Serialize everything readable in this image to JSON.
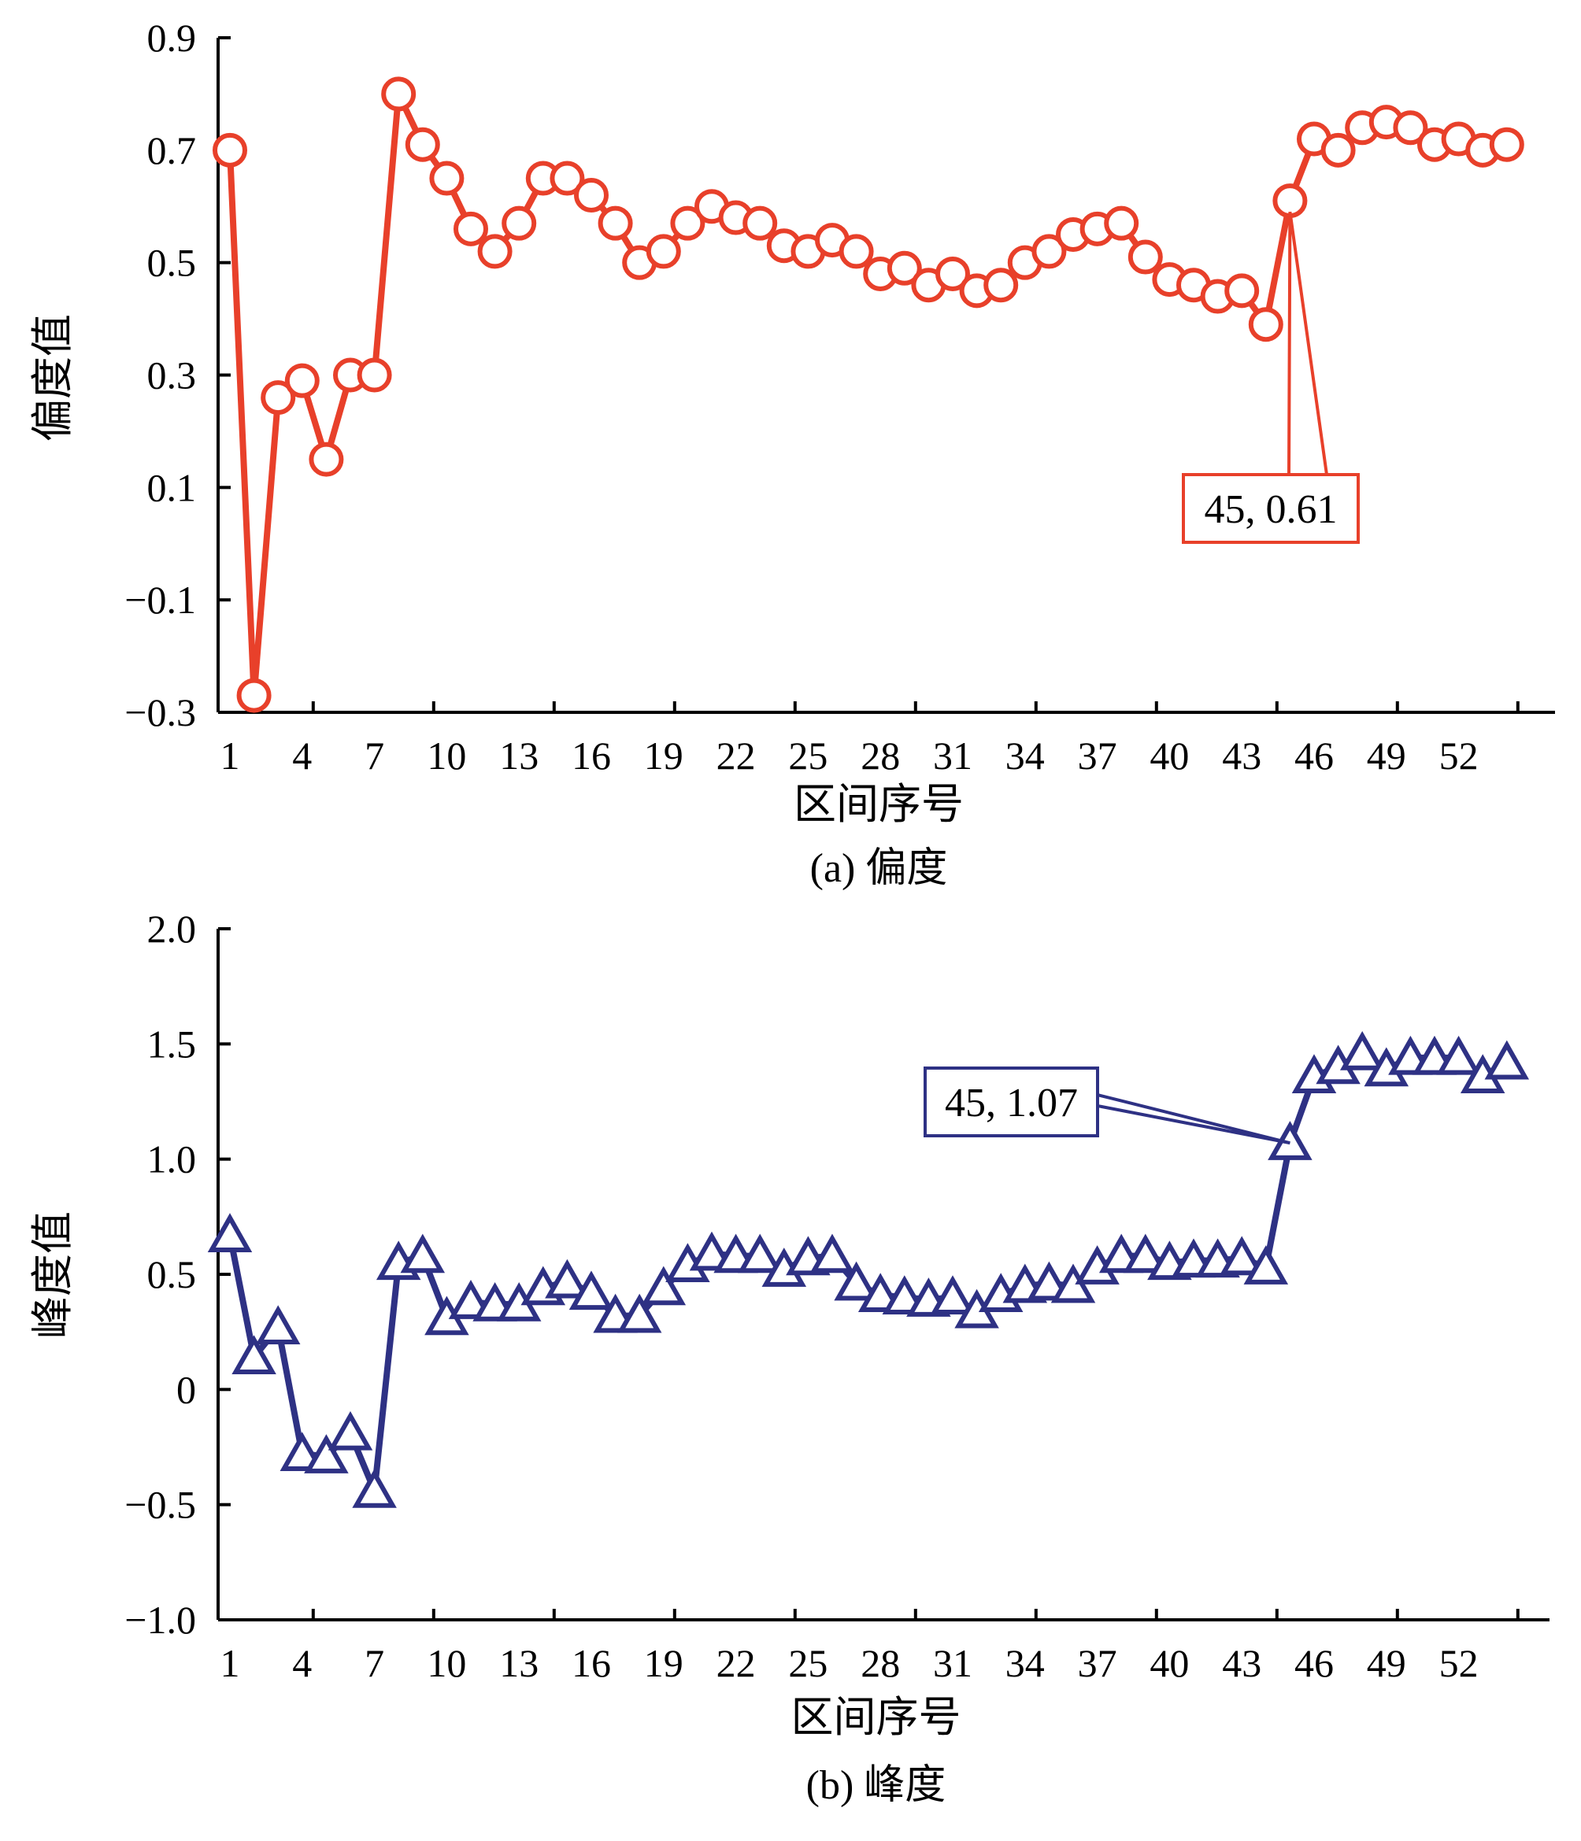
{
  "colors": {
    "skew": "#E8402A",
    "kurt": "#2E3184",
    "axis": "#000000"
  },
  "chart_data": [
    {
      "type": "line",
      "marker": "circle",
      "caption": "(a) 偏度",
      "xlabel": "区间序号",
      "ylabel": "偏度值",
      "xlim": [
        1,
        54
      ],
      "xticks": [
        1,
        4,
        7,
        10,
        13,
        16,
        19,
        22,
        25,
        28,
        31,
        34,
        37,
        40,
        43,
        46,
        49,
        52
      ],
      "xtick_labels": [
        "1",
        "4",
        "7",
        "10",
        "13",
        "16",
        "19",
        "22",
        "25",
        "28",
        "31",
        "34",
        "37",
        "40",
        "43",
        "46",
        "49",
        "52"
      ],
      "ylim": [
        -0.3,
        0.9
      ],
      "yticks": [
        -0.3,
        -0.1,
        0.1,
        0.3,
        0.5,
        0.7,
        0.9
      ],
      "ytick_labels": [
        "−0.3",
        "−0.1",
        "0.1",
        "0.3",
        "0.5",
        "0.7",
        "0.9"
      ],
      "x": [
        1,
        2,
        3,
        4,
        5,
        6,
        7,
        8,
        9,
        10,
        11,
        12,
        13,
        14,
        15,
        16,
        17,
        18,
        19,
        20,
        21,
        22,
        23,
        24,
        25,
        26,
        27,
        28,
        29,
        30,
        31,
        32,
        33,
        34,
        35,
        36,
        37,
        38,
        39,
        40,
        41,
        42,
        43,
        44,
        45,
        46,
        47,
        48,
        49,
        50,
        51,
        52,
        53,
        54
      ],
      "values": [
        0.7,
        -0.27,
        0.26,
        0.29,
        0.15,
        0.3,
        0.3,
        0.8,
        0.71,
        0.65,
        0.56,
        0.52,
        0.57,
        0.65,
        0.65,
        0.62,
        0.57,
        0.5,
        0.52,
        0.57,
        0.6,
        0.58,
        0.57,
        0.53,
        0.52,
        0.54,
        0.52,
        0.48,
        0.49,
        0.46,
        0.48,
        0.45,
        0.46,
        0.5,
        0.52,
        0.55,
        0.56,
        0.57,
        0.51,
        0.47,
        0.46,
        0.44,
        0.45,
        0.39,
        0.61,
        0.72,
        0.7,
        0.74,
        0.75,
        0.74,
        0.71,
        0.72,
        0.7,
        0.71
      ],
      "annotation": {
        "x": 45,
        "y": 0.61,
        "text": "45, 0.61"
      }
    },
    {
      "type": "line",
      "marker": "triangle",
      "caption": "(b) 峰度",
      "xlabel": "区间序号",
      "ylabel": "峰度值",
      "xlim": [
        1,
        54
      ],
      "xticks": [
        1,
        4,
        7,
        10,
        13,
        16,
        19,
        22,
        25,
        28,
        31,
        34,
        37,
        40,
        43,
        46,
        49,
        52
      ],
      "xtick_labels": [
        "1",
        "4",
        "7",
        "10",
        "13",
        "16",
        "19",
        "22",
        "25",
        "28",
        "31",
        "34",
        "37",
        "40",
        "43",
        "46",
        "49",
        "52"
      ],
      "ylim": [
        -1.0,
        2.0
      ],
      "yticks": [
        -1.0,
        -0.5,
        0,
        0.5,
        1.0,
        1.5,
        2.0
      ],
      "ytick_labels": [
        "−1.0",
        "−0.5",
        "0",
        "0.5",
        "1.0",
        "1.5",
        "2.0"
      ],
      "x": [
        1,
        2,
        3,
        4,
        5,
        6,
        7,
        8,
        9,
        10,
        11,
        12,
        13,
        14,
        15,
        16,
        17,
        18,
        19,
        20,
        21,
        22,
        23,
        24,
        25,
        26,
        27,
        28,
        29,
        30,
        31,
        32,
        33,
        34,
        35,
        36,
        37,
        38,
        39,
        40,
        41,
        42,
        43,
        44,
        45,
        46,
        47,
        48,
        49,
        50,
        51,
        52,
        53,
        54
      ],
      "values": [
        0.67,
        0.14,
        0.27,
        -0.28,
        -0.29,
        -0.19,
        -0.44,
        0.55,
        0.58,
        0.31,
        0.38,
        0.37,
        0.37,
        0.44,
        0.47,
        0.42,
        0.32,
        0.32,
        0.44,
        0.54,
        0.59,
        0.58,
        0.58,
        0.52,
        0.57,
        0.58,
        0.46,
        0.41,
        0.4,
        0.39,
        0.4,
        0.34,
        0.41,
        0.45,
        0.46,
        0.45,
        0.53,
        0.58,
        0.58,
        0.55,
        0.56,
        0.56,
        0.57,
        0.53,
        1.07,
        1.36,
        1.4,
        1.46,
        1.39,
        1.44,
        1.44,
        1.44,
        1.36,
        1.42
      ],
      "annotation": {
        "x": 45,
        "y": 1.07,
        "text": "45, 1.07"
      }
    }
  ]
}
